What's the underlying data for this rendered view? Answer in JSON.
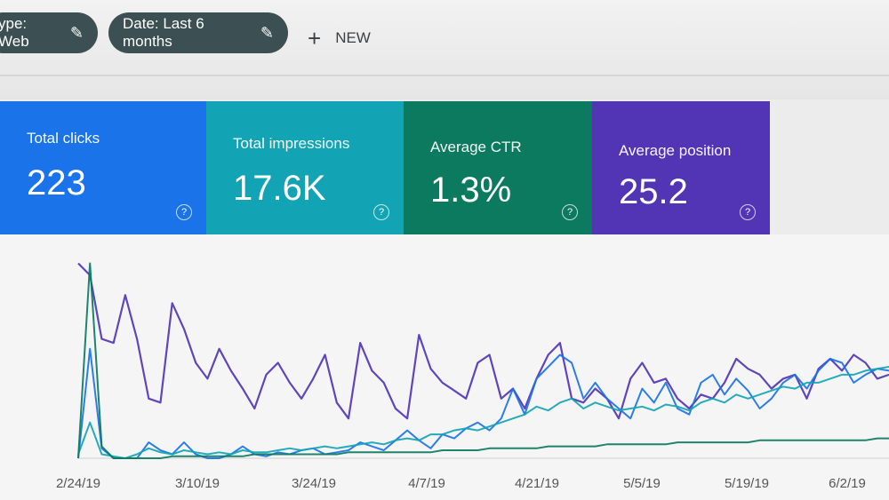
{
  "filters": {
    "type_chip": "ype: Web",
    "date_chip": "Date: Last 6 months",
    "pencil_icon": "pencil-icon",
    "new_label": "NEW"
  },
  "cards": {
    "clicks": {
      "label": "Total clicks",
      "value": "223",
      "color": "#1a73e8"
    },
    "impressions": {
      "label": "Total impressions",
      "value": "17.6K",
      "color": "#12a4b4"
    },
    "ctr": {
      "label": "Average CTR",
      "value": "1.3%",
      "color": "#0b7a5e"
    },
    "position": {
      "label": "Average position",
      "value": "25.2",
      "color": "#5235b5"
    }
  },
  "chart_data": {
    "type": "line",
    "x_ticks": [
      "2/24/19",
      "3/10/19",
      "3/24/19",
      "4/7/19",
      "4/21/19",
      "5/5/19",
      "5/19/19",
      "6/2/19"
    ],
    "series": [
      {
        "color": "#5235b5",
        "values": [
          98,
          92,
          60,
          58,
          82,
          60,
          30,
          28,
          78,
          65,
          48,
          40,
          55,
          44,
          35,
          25,
          42,
          48,
          38,
          30,
          40,
          52,
          28,
          20,
          58,
          44,
          38,
          25,
          20,
          62,
          45,
          38,
          34,
          30,
          48,
          52,
          30,
          35,
          25,
          40,
          52,
          58,
          30,
          28,
          35,
          30,
          20,
          40,
          48,
          38,
          40,
          30,
          25,
          32,
          30,
          38,
          50,
          45,
          42,
          35,
          40,
          42,
          30,
          45,
          50,
          44,
          52,
          48,
          40,
          42
        ]
      },
      {
        "color": "#1a73e8",
        "values": [
          0,
          55,
          5,
          0,
          0,
          0,
          8,
          4,
          2,
          8,
          2,
          0,
          0,
          2,
          6,
          2,
          1,
          3,
          2,
          4,
          5,
          2,
          3,
          4,
          8,
          6,
          4,
          9,
          14,
          9,
          5,
          12,
          10,
          15,
          18,
          14,
          20,
          35,
          22,
          40,
          46,
          52,
          48,
          30,
          38,
          30,
          25,
          20,
          35,
          28,
          38,
          25,
          22,
          38,
          42,
          32,
          40,
          34,
          25,
          30,
          38,
          42,
          35,
          44,
          50,
          48,
          38,
          42,
          45,
          44
        ]
      },
      {
        "color": "#12a4b4",
        "values": [
          2,
          18,
          2,
          1,
          0,
          2,
          5,
          3,
          2,
          4,
          3,
          2,
          3,
          2,
          4,
          3,
          3,
          4,
          5,
          4,
          5,
          6,
          5,
          6,
          7,
          8,
          7,
          9,
          10,
          9,
          12,
          12,
          14,
          15,
          14,
          16,
          18,
          20,
          22,
          26,
          24,
          28,
          30,
          25,
          28,
          26,
          24,
          25,
          26,
          24,
          27,
          26,
          24,
          28,
          30,
          28,
          32,
          30,
          32,
          34,
          36,
          35,
          38,
          38,
          40,
          42,
          42,
          44,
          45,
          46
        ]
      },
      {
        "color": "#0b7a5e",
        "values": [
          0,
          98,
          6,
          0,
          0,
          0,
          0,
          0,
          1,
          1,
          1,
          1,
          1,
          1,
          1,
          2,
          2,
          2,
          2,
          2,
          2,
          2,
          2,
          3,
          3,
          3,
          3,
          3,
          3,
          3,
          3,
          4,
          4,
          4,
          4,
          5,
          5,
          5,
          5,
          5,
          6,
          6,
          6,
          6,
          6,
          7,
          7,
          7,
          7,
          7,
          7,
          8,
          8,
          8,
          8,
          8,
          8,
          8,
          9,
          9,
          9,
          9,
          9,
          9,
          9,
          9,
          9,
          9,
          10,
          10
        ]
      }
    ]
  }
}
